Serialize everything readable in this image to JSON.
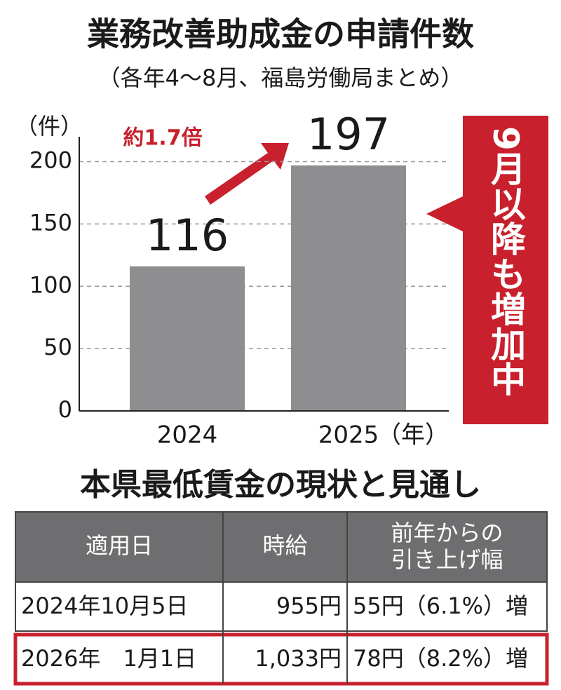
{
  "chart_data": {
    "type": "bar",
    "title": "業務改善助成金の申請件数",
    "subtitle": "（各年4～8月、福島労働局まとめ）",
    "y_label": "（件）",
    "x_label": "（年）",
    "categories": [
      "2024",
      "2025"
    ],
    "values": [
      116,
      197
    ],
    "color": "#8e8e90",
    "ylim": [
      0,
      220
    ],
    "yticks": [
      0,
      50,
      100,
      150,
      200
    ],
    "grid": true,
    "annotations": [
      "約1.7倍",
      "9月以降も増加中"
    ]
  },
  "table": {
    "title": "本県最低賃金の現状と見通し",
    "header": [
      "適用日",
      "時給",
      [
        "前年からの",
        "引き上げ幅"
      ]
    ],
    "rows": [
      [
        "2024年10月5日",
        "955円",
        "55円（6.1%）増"
      ],
      [
        "2026年　1月1日",
        "1,033円",
        "78円（8.2%）増"
      ]
    ]
  }
}
